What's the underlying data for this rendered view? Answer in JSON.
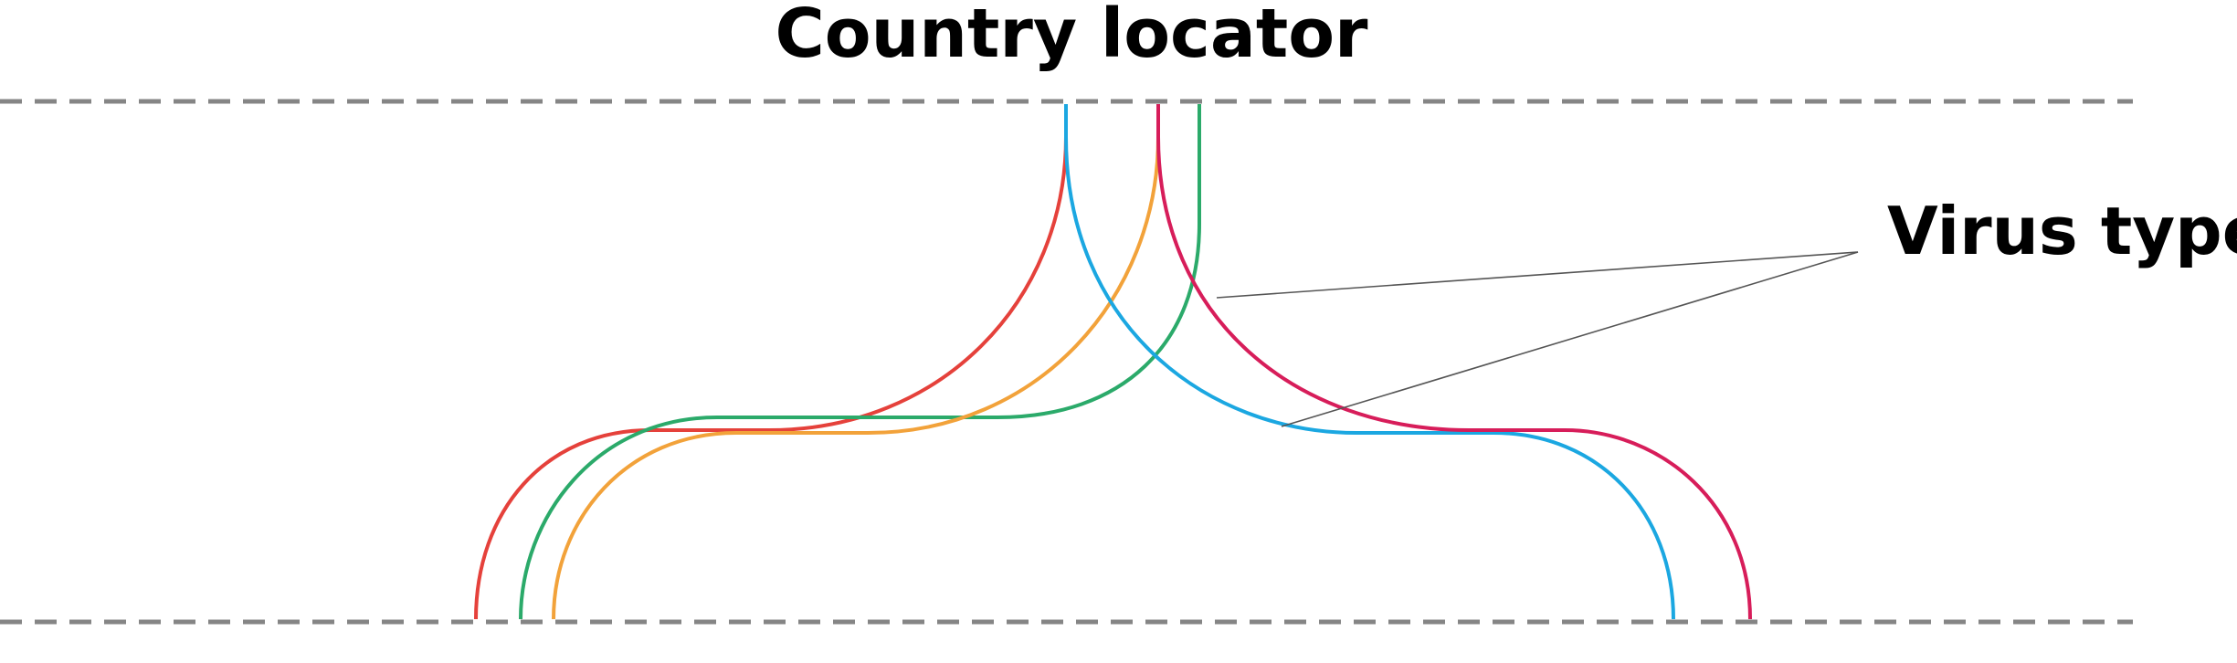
{
  "labels": {
    "top": "Country locator",
    "right": "Virus type"
  },
  "colors": {
    "red": "#E5413B",
    "green": "#2BAA6A",
    "orange": "#F2A23A",
    "blue": "#1BA7E1",
    "crimson": "#D71D5A",
    "dashed_line": "#858585",
    "leader_line": "#555555"
  },
  "flows": [
    {
      "color_key": "red"
    },
    {
      "color_key": "green"
    },
    {
      "color_key": "orange"
    },
    {
      "color_key": "blue"
    },
    {
      "color_key": "crimson"
    }
  ]
}
